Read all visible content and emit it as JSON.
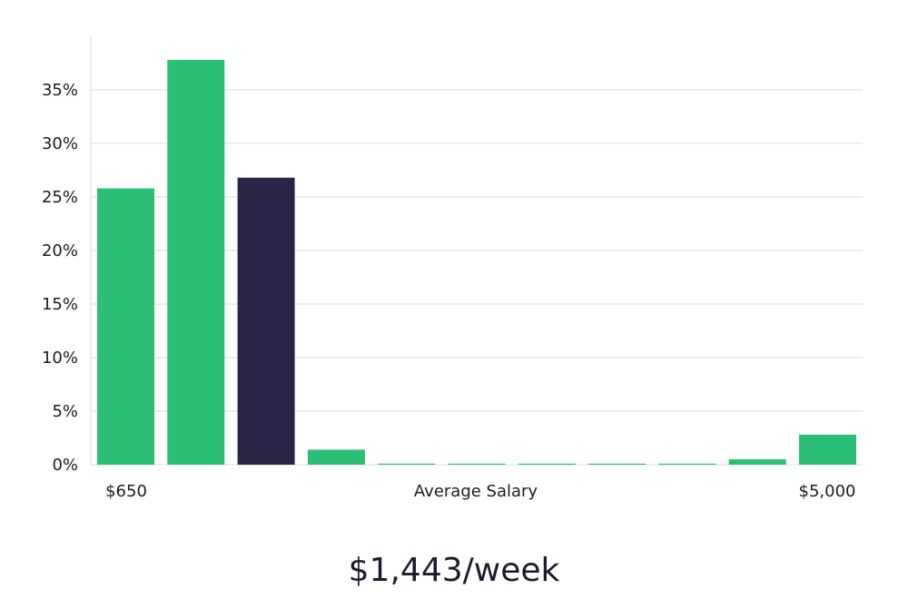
{
  "chart_data": {
    "type": "bar",
    "values": [
      25.8,
      37.8,
      26.8,
      1.4,
      0.1,
      0.1,
      0.1,
      0.1,
      0.1,
      0.5,
      2.8
    ],
    "highlight_index": 2,
    "ylim": [
      0,
      40
    ],
    "yticks": [
      0,
      5,
      10,
      15,
      20,
      25,
      30,
      35
    ],
    "ytick_labels": [
      "0%",
      "5%",
      "10%",
      "15%",
      "20%",
      "25%",
      "30%",
      "35%"
    ],
    "grid": true,
    "x_start_label": "$650",
    "x_end_label": "$5,000",
    "xlabel": "Average Salary",
    "colors": {
      "bar": "#2bbf76",
      "highlight": "#2a2546",
      "grid": "#dcdcdc",
      "axis": "#d8d8d8"
    }
  },
  "headline": "$1,443/week"
}
